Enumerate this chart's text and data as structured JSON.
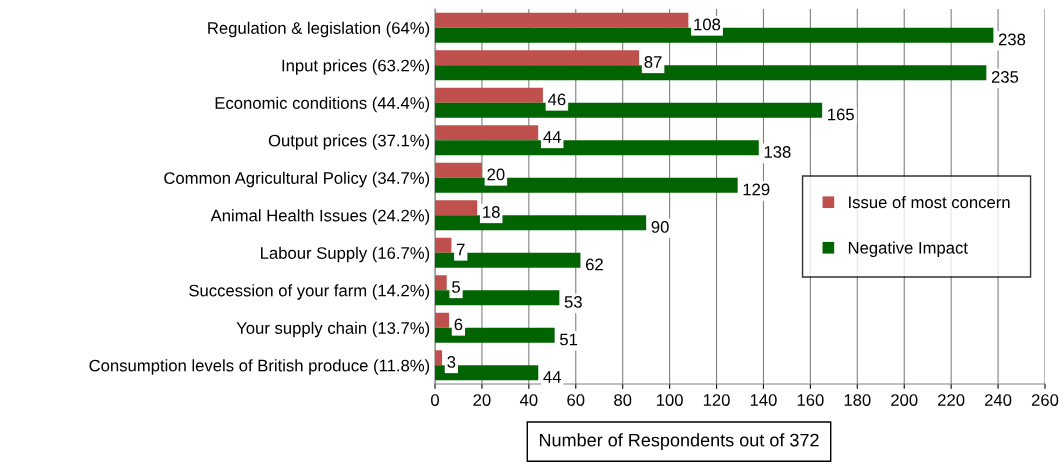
{
  "chart_data": {
    "type": "bar",
    "orientation": "horizontal",
    "categories": [
      "Regulation & legislation (64%)",
      "Input prices (63.2%)",
      "Economic conditions (44.4%)",
      "Output prices (37.1%)",
      "Common Agricultural Policy (34.7%)",
      "Animal Health Issues (24.2%)",
      "Labour Supply (16.7%)",
      "Succession of your farm (14.2%)",
      "Your supply chain (13.7%)",
      "Consumption levels of British produce (11.8%)"
    ],
    "series": [
      {
        "name": "Issue of most concern",
        "color": "#c0504d",
        "values": [
          108,
          87,
          46,
          44,
          20,
          18,
          7,
          5,
          6,
          3
        ]
      },
      {
        "name": "Negative Impact",
        "color": "#006400",
        "values": [
          238,
          235,
          165,
          138,
          129,
          90,
          62,
          53,
          51,
          44
        ]
      }
    ],
    "xlim": [
      0,
      260
    ],
    "xticks": [
      0,
      20,
      40,
      60,
      80,
      100,
      120,
      140,
      160,
      180,
      200,
      220,
      240,
      260
    ],
    "xlabel": "Number of Respondents out of 372",
    "grid": "x",
    "legend": "right",
    "data_labels": true
  }
}
